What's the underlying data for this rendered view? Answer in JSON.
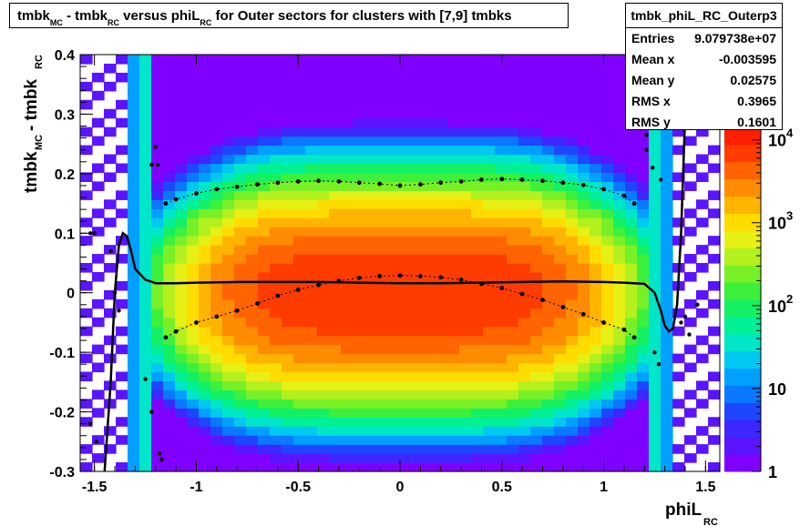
{
  "title": {
    "parts": [
      {
        "text": "tmbk",
        "sub": "MC"
      },
      {
        "text": " - tmbk",
        "sub": "RC"
      },
      {
        "text": " versus phiL",
        "sub": "RC"
      },
      {
        "text": " for Outer sectors for clusters with [7,9] tmbks",
        "sub": ""
      }
    ]
  },
  "stats": {
    "name": "tmbk_phiL_RC_Outerp3",
    "rows": [
      {
        "label": "Entries",
        "value": "9.079738e+07"
      },
      {
        "label": "Mean x",
        "value": "-0.003595"
      },
      {
        "label": "Mean y",
        "value": "0.02575"
      },
      {
        "label": "RMS x",
        "value": "0.3965"
      },
      {
        "label": "RMS y",
        "value": "0.1601"
      }
    ]
  },
  "chart_data": {
    "type": "heatmap",
    "xlabel": "phiL",
    "xlabel_sub": "RC",
    "ylabel": "tmbk",
    "ylabel_sub1": "MC",
    "ylabel_mid": " - tmbk",
    "ylabel_sub2": "RC",
    "xlim": [
      -1.57,
      1.57
    ],
    "ylim": [
      -0.3,
      0.4
    ],
    "x_ticks": [
      "-1.5",
      "-1",
      "-0.5",
      "0",
      "0.5",
      "1",
      "1.5"
    ],
    "y_ticks": [
      "-0.3",
      "-0.2",
      "-0.1",
      "0",
      "0.1",
      "0.2",
      "0.3",
      "0.4"
    ],
    "z_log": true,
    "z_range": [
      1,
      10000
    ],
    "z_tick_labels": [
      "1",
      "10",
      "10",
      "10",
      "10"
    ],
    "z_tick_exponents": [
      "",
      "",
      "2",
      "3",
      "4"
    ],
    "palette": [
      "#8000ff",
      "#5a14ff",
      "#3c28ff",
      "#1e46ff",
      "#0a78ff",
      "#00a0ff",
      "#00c8f0",
      "#00e6c8",
      "#00f096",
      "#14f064",
      "#3cf03c",
      "#78f028",
      "#b4f01e",
      "#e6f014",
      "#ffdc00",
      "#ffb400",
      "#ff8c00",
      "#ff6400",
      "#ff3c00",
      "#ff1e00"
    ],
    "peak": {
      "x": 0,
      "y": 0.0
    },
    "profile_mean": {
      "x": [
        -1.45,
        -1.42,
        -1.4,
        -1.38,
        -1.36,
        -1.34,
        -1.32,
        -1.3,
        -1.25,
        -1.2,
        -1.1,
        -1.0,
        -0.8,
        -0.6,
        -0.4,
        -0.2,
        0,
        0.2,
        0.4,
        0.6,
        0.8,
        1.0,
        1.1,
        1.2,
        1.25,
        1.28,
        1.3,
        1.32,
        1.34,
        1.36,
        1.38,
        1.4,
        1.42
      ],
      "y": [
        -0.3,
        -0.15,
        0.0,
        0.08,
        0.1,
        0.095,
        0.07,
        0.04,
        0.022,
        0.016,
        0.016,
        0.017,
        0.018,
        0.018,
        0.018,
        0.017,
        0.016,
        0.016,
        0.017,
        0.018,
        0.019,
        0.018,
        0.017,
        0.015,
        0.0,
        -0.03,
        -0.055,
        -0.065,
        -0.06,
        -0.02,
        0.1,
        0.3,
        0.45
      ]
    },
    "profile_upper": {
      "x": [
        -1.15,
        -1.1,
        -1.0,
        -0.9,
        -0.8,
        -0.7,
        -0.6,
        -0.5,
        -0.4,
        -0.3,
        -0.2,
        -0.1,
        0,
        0.1,
        0.2,
        0.3,
        0.4,
        0.5,
        0.6,
        0.7,
        0.8,
        0.9,
        1.0,
        1.1,
        1.15
      ],
      "y": [
        0.15,
        0.157,
        0.167,
        0.174,
        0.178,
        0.182,
        0.185,
        0.187,
        0.188,
        0.187,
        0.185,
        0.183,
        0.18,
        0.182,
        0.185,
        0.187,
        0.19,
        0.191,
        0.19,
        0.188,
        0.185,
        0.181,
        0.174,
        0.163,
        0.15
      ]
    },
    "profile_lower": {
      "x": [
        -1.15,
        -1.1,
        -1.0,
        -0.9,
        -0.8,
        -0.7,
        -0.6,
        -0.5,
        -0.4,
        -0.3,
        -0.2,
        -0.1,
        0,
        0.1,
        0.2,
        0.3,
        0.4,
        0.5,
        0.6,
        0.7,
        0.8,
        0.9,
        1.0,
        1.1,
        1.15
      ],
      "y": [
        -0.075,
        -0.065,
        -0.05,
        -0.04,
        -0.03,
        -0.018,
        -0.005,
        0.005,
        0.013,
        0.02,
        0.025,
        0.028,
        0.029,
        0.028,
        0.026,
        0.022,
        0.015,
        0.008,
        -0.002,
        -0.012,
        -0.024,
        -0.036,
        -0.05,
        -0.062,
        -0.075
      ]
    },
    "scatter_points": {
      "x": [
        -1.52,
        -1.5,
        -1.42,
        -1.4,
        -1.38,
        -1.2,
        -1.19,
        -1.22,
        -1.18,
        -1.25,
        -1.22,
        -1.17,
        -1.52,
        -1.49,
        1.21,
        1.21,
        1.24,
        1.25,
        1.27,
        1.28,
        1.38,
        1.4,
        1.42,
        1.46
      ],
      "y": [
        0.1,
        0.1,
        0.07,
        0.0,
        -0.03,
        0.245,
        0.215,
        0.215,
        -0.27,
        -0.145,
        -0.2,
        -0.28,
        -0.22,
        -0.25,
        0.265,
        0.24,
        0.21,
        -0.1,
        -0.12,
        0.19,
        -0.05,
        -0.04,
        -0.07,
        -0.02
      ]
    }
  }
}
